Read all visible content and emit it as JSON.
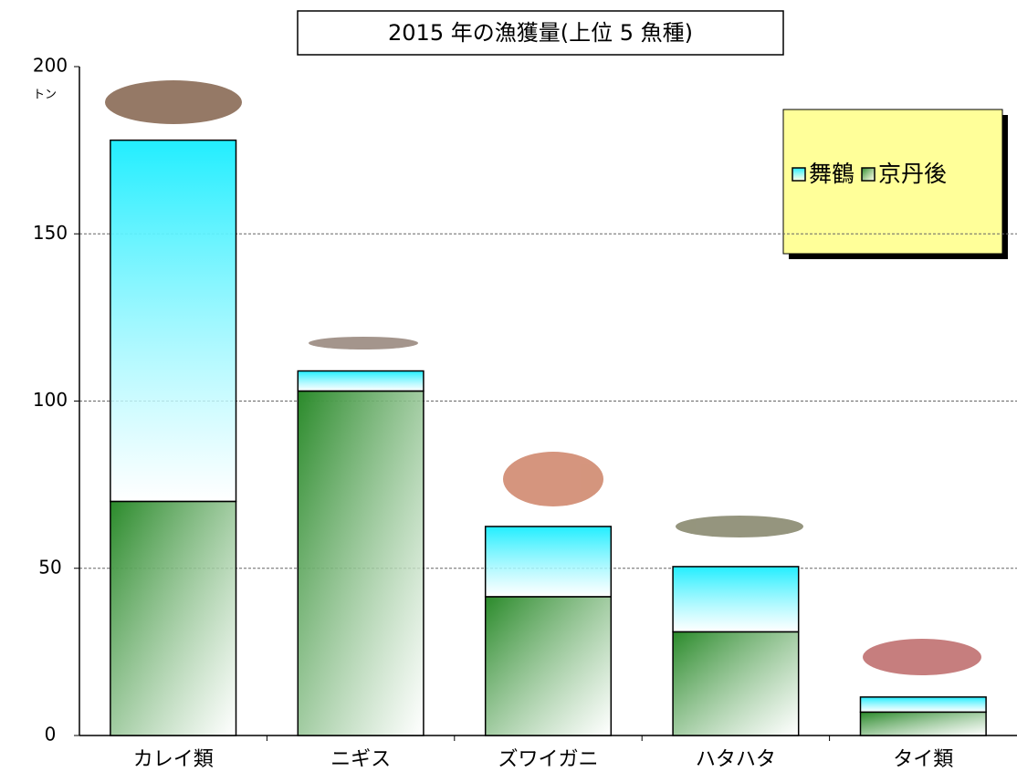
{
  "chart_data": {
    "type": "bar",
    "stacked": true,
    "title": "2015 年の漁獲量(上位 5 魚種)",
    "y_unit": "トン",
    "categories": [
      "カレイ類",
      "ニギス",
      "ズワイガニ",
      "ハタハタ",
      "タイ類"
    ],
    "series": [
      {
        "name": "舞鶴",
        "color": "#22eeff",
        "values": [
          108,
          6,
          21,
          19.5,
          4.5
        ]
      },
      {
        "name": "京丹後",
        "color": "#2a8a2a",
        "values": [
          70,
          103,
          41.5,
          31,
          7
        ]
      }
    ],
    "ylim": [
      0,
      200
    ],
    "yticks": [
      0,
      50,
      100,
      150,
      200
    ],
    "grid": true,
    "legend": "upper right"
  }
}
